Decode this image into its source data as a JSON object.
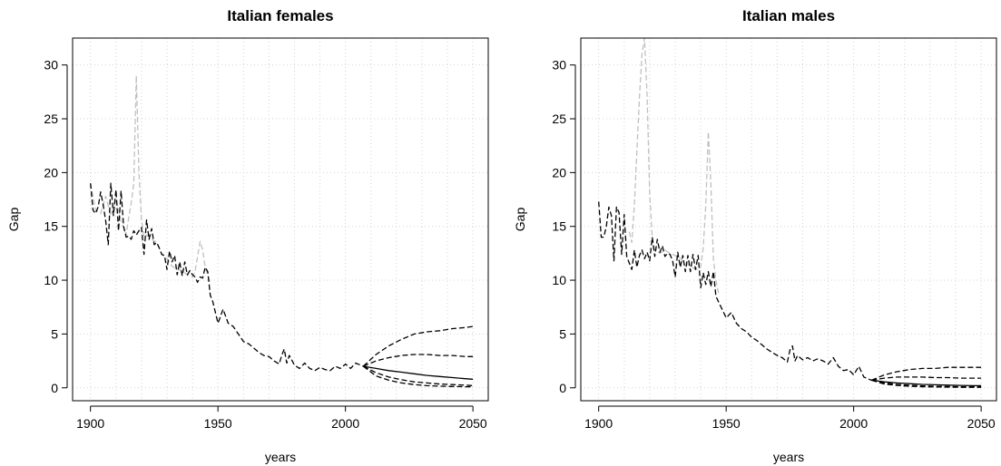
{
  "chart_data": [
    {
      "type": "line",
      "title": "Italian females",
      "xlabel": "years",
      "ylabel": "Gap",
      "xlim": [
        1893,
        2056
      ],
      "ylim": [
        -1.2,
        32.5
      ],
      "xticks": [
        1900,
        1950,
        2000,
        2050
      ],
      "yticks": [
        0,
        5,
        10,
        15,
        20,
        25,
        30
      ],
      "grid": true,
      "series": [
        {
          "color": "#c0c0c0",
          "style": "dashed",
          "x": [
            1900,
            1902,
            1904,
            1906,
            1908,
            1910,
            1912,
            1914,
            1915,
            1916,
            1917,
            1918,
            1919,
            1920,
            1921,
            1922,
            1924,
            1926,
            1928,
            1930,
            1932,
            1934,
            1936,
            1938,
            1940,
            1941,
            1942,
            1943,
            1944,
            1945,
            1946,
            1947
          ],
          "y": [
            19.0,
            16.5,
            16.2,
            17.8,
            16.0,
            17.5,
            15.5,
            14.2,
            15.8,
            17.2,
            19.0,
            29.0,
            20.0,
            15.6,
            14.0,
            14.2,
            13.8,
            13.5,
            12.4,
            12.0,
            11.3,
            11.0,
            10.9,
            10.5,
            10.3,
            10.8,
            12.2,
            13.6,
            12.8,
            11.2,
            10.5,
            9.6
          ]
        },
        {
          "color": "#000000",
          "style": "dashed",
          "x": [
            1900,
            1901,
            1902,
            1903,
            1904,
            1905,
            1906,
            1907,
            1908,
            1909,
            1910,
            1911,
            1912,
            1913,
            1914,
            1915,
            1916,
            1917,
            1918,
            1919,
            1920,
            1921,
            1922,
            1923,
            1924,
            1925,
            1926,
            1927,
            1928,
            1929,
            1930,
            1931,
            1932,
            1933,
            1934,
            1935,
            1936,
            1937,
            1938,
            1939,
            1940,
            1941,
            1942,
            1943,
            1944,
            1945,
            1946,
            1947,
            1948,
            1950,
            1952,
            1954,
            1956,
            1958,
            1960,
            1962,
            1964,
            1966,
            1968,
            1970,
            1972,
            1974,
            1975,
            1976,
            1977,
            1978,
            1980,
            1982,
            1984,
            1986,
            1988,
            1990,
            1992,
            1994,
            1996,
            1998,
            2000,
            2002,
            2004,
            2006,
            2007
          ],
          "y": [
            19.0,
            16.5,
            16.2,
            16.8,
            18.2,
            17.0,
            15.5,
            13.3,
            19.0,
            16.0,
            18.4,
            14.6,
            18.3,
            15.0,
            14.0,
            14.1,
            13.8,
            14.6,
            14.2,
            14.6,
            14.9,
            12.4,
            15.6,
            13.8,
            14.8,
            13.3,
            13.5,
            13.0,
            12.4,
            12.3,
            11.0,
            12.7,
            11.7,
            12.3,
            10.5,
            11.7,
            10.4,
            11.7,
            10.5,
            10.9,
            10.5,
            10.3,
            9.8,
            10.3,
            10.2,
            11.2,
            10.8,
            8.6,
            8.0,
            6.0,
            7.3,
            6.0,
            5.7,
            5.0,
            4.3,
            4.1,
            3.7,
            3.3,
            3.0,
            2.9,
            2.5,
            2.2,
            3.0,
            3.6,
            2.3,
            3.0,
            2.1,
            1.8,
            2.3,
            1.8,
            1.6,
            1.9,
            1.7,
            1.6,
            2.0,
            1.8,
            2.2,
            1.8,
            2.3,
            2.1,
            2.0
          ]
        },
        {
          "color": "#000000",
          "style": "dashed",
          "x": [
            2007,
            2012,
            2017,
            2022,
            2027,
            2032,
            2037,
            2042,
            2047,
            2050
          ],
          "y": [
            2.0,
            3.1,
            3.9,
            4.5,
            5.0,
            5.2,
            5.3,
            5.5,
            5.6,
            5.7
          ]
        },
        {
          "color": "#000000",
          "style": "dashed",
          "x": [
            2007,
            2012,
            2017,
            2022,
            2027,
            2032,
            2037,
            2042,
            2047,
            2050
          ],
          "y": [
            2.0,
            2.5,
            2.8,
            3.0,
            3.1,
            3.1,
            3.0,
            3.0,
            2.9,
            2.9
          ]
        },
        {
          "color": "#000000",
          "style": "solid",
          "x": [
            2007,
            2012,
            2017,
            2022,
            2027,
            2032,
            2037,
            2042,
            2047,
            2050
          ],
          "y": [
            2.0,
            1.8,
            1.6,
            1.45,
            1.3,
            1.15,
            1.05,
            0.95,
            0.85,
            0.8
          ]
        },
        {
          "color": "#000000",
          "style": "dashed",
          "x": [
            2007,
            2012,
            2017,
            2022,
            2027,
            2032,
            2037,
            2042,
            2047,
            2050
          ],
          "y": [
            2.0,
            1.4,
            1.0,
            0.75,
            0.55,
            0.45,
            0.35,
            0.3,
            0.25,
            0.2
          ]
        },
        {
          "color": "#000000",
          "style": "dashed",
          "x": [
            2007,
            2012,
            2017,
            2022,
            2027,
            2032,
            2037,
            2042,
            2047,
            2050
          ],
          "y": [
            2.0,
            1.1,
            0.7,
            0.45,
            0.3,
            0.2,
            0.15,
            0.12,
            0.1,
            0.1
          ]
        }
      ]
    },
    {
      "type": "line",
      "title": "Italian males",
      "xlabel": "years",
      "ylabel": "Gap",
      "xlim": [
        1893,
        2056
      ],
      "ylim": [
        -1.2,
        32.5
      ],
      "xticks": [
        1900,
        1950,
        2000,
        2050
      ],
      "yticks": [
        0,
        5,
        10,
        15,
        20,
        25,
        30
      ],
      "grid": true,
      "series": [
        {
          "color": "#c0c0c0",
          "style": "dashed",
          "x": [
            1912,
            1913,
            1914,
            1915,
            1916,
            1917,
            1918,
            1919,
            1920,
            1921,
            1922,
            1924,
            1926,
            1928,
            1930,
            1932,
            1934,
            1936,
            1938,
            1939,
            1940,
            1941,
            1942,
            1943,
            1944,
            1945,
            1946,
            1947
          ],
          "y": [
            14.5,
            13.5,
            17.0,
            22.0,
            27.0,
            31.0,
            32.5,
            27.0,
            18.0,
            14.0,
            12.8,
            12.5,
            12.8,
            12.5,
            12.3,
            12.0,
            11.6,
            11.3,
            11.0,
            11.0,
            11.2,
            13.0,
            17.0,
            23.8,
            19.0,
            12.0,
            10.0,
            8.8
          ]
        },
        {
          "color": "#000000",
          "style": "dashed",
          "x": [
            1900,
            1901,
            1902,
            1903,
            1904,
            1905,
            1906,
            1907,
            1908,
            1909,
            1910,
            1911,
            1912,
            1913,
            1914,
            1915,
            1916,
            1917,
            1918,
            1919,
            1920,
            1921,
            1922,
            1923,
            1924,
            1925,
            1926,
            1927,
            1928,
            1929,
            1930,
            1931,
            1932,
            1933,
            1934,
            1935,
            1936,
            1937,
            1938,
            1939,
            1940,
            1941,
            1942,
            1943,
            1944,
            1945,
            1946,
            1947,
            1948,
            1950,
            1952,
            1954,
            1956,
            1958,
            1960,
            1962,
            1964,
            1966,
            1968,
            1970,
            1972,
            1974,
            1975,
            1976,
            1977,
            1978,
            1980,
            1982,
            1984,
            1986,
            1988,
            1990,
            1992,
            1994,
            1996,
            1998,
            2000,
            2002,
            2004,
            2006,
            2007
          ],
          "y": [
            17.3,
            14.0,
            14.0,
            15.0,
            16.8,
            16.0,
            11.8,
            16.8,
            16.3,
            12.4,
            16.1,
            12.2,
            11.6,
            11.0,
            12.8,
            11.2,
            12.3,
            12.8,
            12.0,
            12.6,
            11.8,
            14.0,
            12.2,
            13.8,
            12.6,
            13.2,
            12.2,
            12.5,
            12.4,
            11.8,
            10.3,
            12.6,
            11.2,
            12.3,
            10.8,
            12.3,
            10.8,
            12.4,
            11.0,
            12.3,
            9.3,
            10.7,
            9.6,
            10.8,
            9.4,
            10.8,
            8.5,
            8.0,
            7.5,
            6.5,
            7.0,
            6.0,
            5.5,
            5.2,
            4.7,
            4.4,
            4.0,
            3.6,
            3.3,
            3.0,
            2.8,
            2.4,
            3.5,
            3.9,
            2.5,
            3.0,
            2.6,
            2.8,
            2.5,
            2.7,
            2.5,
            2.2,
            2.8,
            2.0,
            1.6,
            1.7,
            1.2,
            2.0,
            1.0,
            0.8,
            0.7
          ]
        },
        {
          "color": "#000000",
          "style": "dashed",
          "x": [
            2007,
            2012,
            2017,
            2022,
            2027,
            2032,
            2037,
            2042,
            2047,
            2050
          ],
          "y": [
            0.7,
            1.2,
            1.5,
            1.7,
            1.8,
            1.8,
            1.9,
            1.9,
            1.9,
            1.9
          ]
        },
        {
          "color": "#000000",
          "style": "dashed",
          "x": [
            2007,
            2012,
            2017,
            2022,
            2027,
            2032,
            2037,
            2042,
            2047,
            2050
          ],
          "y": [
            0.7,
            0.9,
            1.0,
            1.0,
            1.0,
            0.95,
            0.95,
            0.9,
            0.9,
            0.9
          ]
        },
        {
          "color": "#000000",
          "style": "solid",
          "x": [
            2007,
            2012,
            2017,
            2022,
            2027,
            2032,
            2037,
            2042,
            2047,
            2050
          ],
          "y": [
            0.7,
            0.55,
            0.45,
            0.38,
            0.32,
            0.28,
            0.25,
            0.22,
            0.2,
            0.2
          ]
        },
        {
          "color": "#000000",
          "style": "dashed",
          "x": [
            2007,
            2012,
            2017,
            2022,
            2027,
            2032,
            2037,
            2042,
            2047,
            2050
          ],
          "y": [
            0.7,
            0.45,
            0.32,
            0.24,
            0.18,
            0.14,
            0.12,
            0.1,
            0.1,
            0.1
          ]
        },
        {
          "color": "#000000",
          "style": "dashed",
          "x": [
            2007,
            2012,
            2017,
            2022,
            2027,
            2032,
            2037,
            2042,
            2047,
            2050
          ],
          "y": [
            0.7,
            0.35,
            0.22,
            0.15,
            0.1,
            0.08,
            0.06,
            0.05,
            0.05,
            0.05
          ]
        }
      ]
    }
  ]
}
